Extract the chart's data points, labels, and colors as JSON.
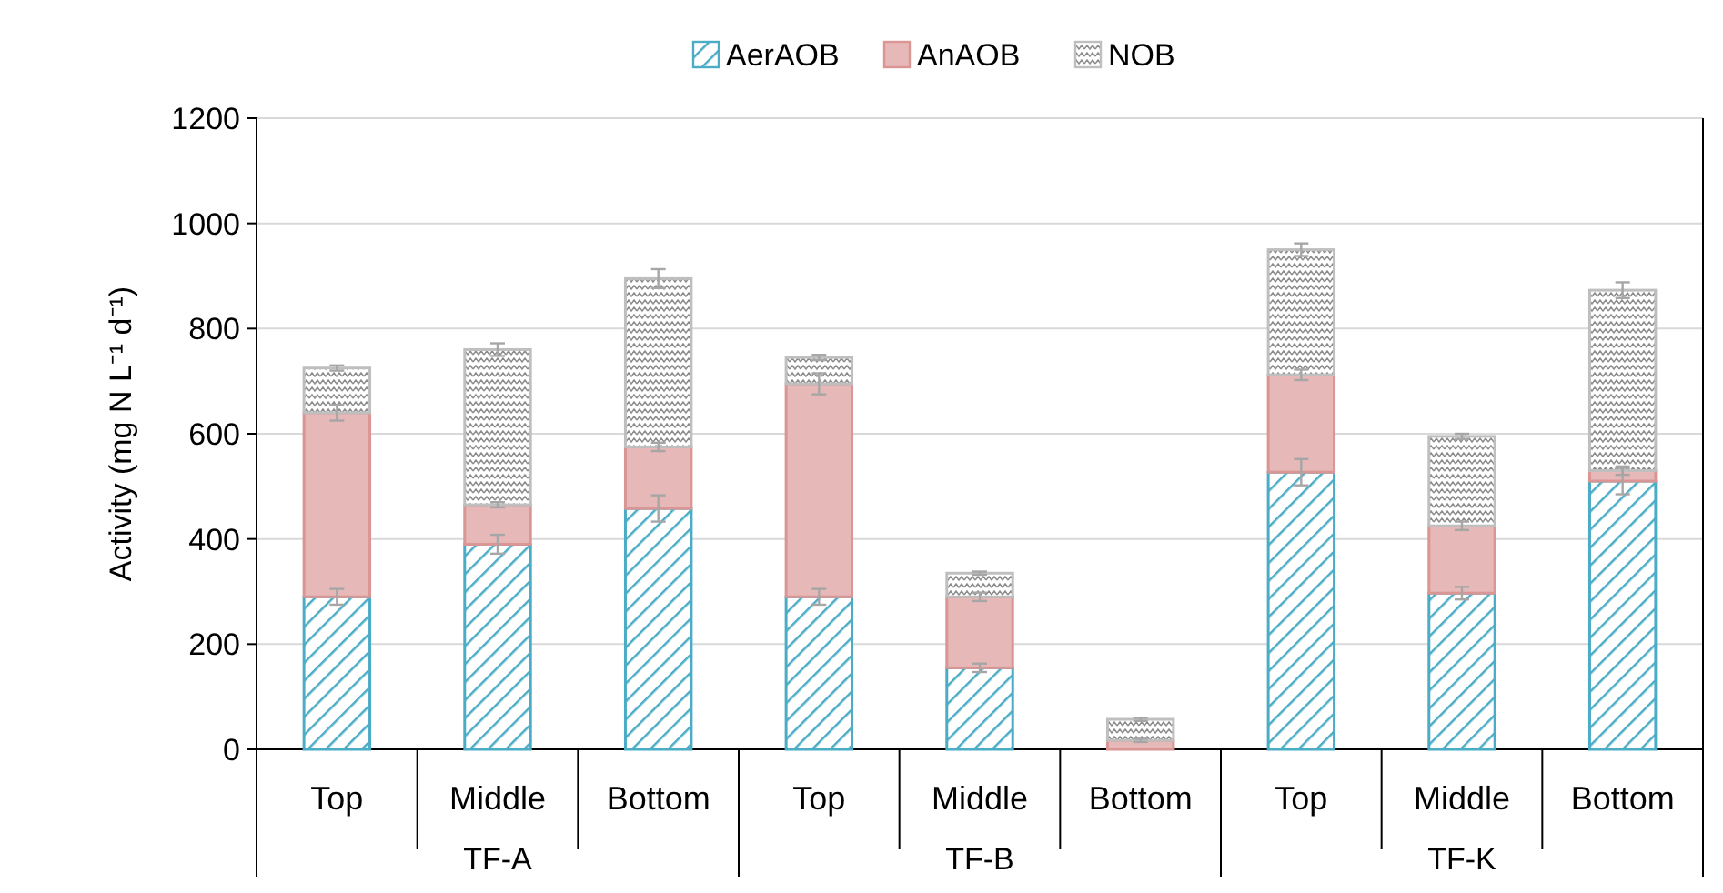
{
  "chart_data": {
    "type": "bar",
    "stacked": true,
    "ylabel": "Activity (mg N L⁻¹ d⁻¹)",
    "categories": [
      "Top",
      "Middle",
      "Bottom",
      "Top",
      "Middle",
      "Bottom",
      "Top",
      "Middle",
      "Bottom"
    ],
    "annotations": [
      "TF-A",
      "TF-B",
      "TF-K"
    ],
    "series": [
      {
        "name": "AerAOB",
        "color": "#4bacc6",
        "values": [
          290,
          390,
          458,
          290,
          155,
          null,
          527,
          297,
          510
        ],
        "errors": [
          15,
          18,
          25,
          15,
          8,
          null,
          25,
          12,
          25
        ]
      },
      {
        "name": "AnAOB",
        "color": "#e6b8b7",
        "values": [
          350,
          75,
          117,
          405,
          135,
          17,
          185,
          128,
          20
        ],
        "errors": [
          15,
          5,
          8,
          20,
          8,
          3,
          10,
          8,
          8
        ]
      },
      {
        "name": "NOB",
        "color": "#bfbfbf",
        "values": [
          85,
          295,
          320,
          50,
          45,
          40,
          238,
          170,
          343
        ],
        "errors": [
          5,
          12,
          18,
          5,
          3,
          3,
          12,
          5,
          15
        ]
      }
    ],
    "ylim": [
      0,
      1200
    ],
    "yticks": [
      0,
      200,
      400,
      600,
      800,
      1000,
      1200
    ],
    "grid": "y",
    "legend": "top"
  }
}
